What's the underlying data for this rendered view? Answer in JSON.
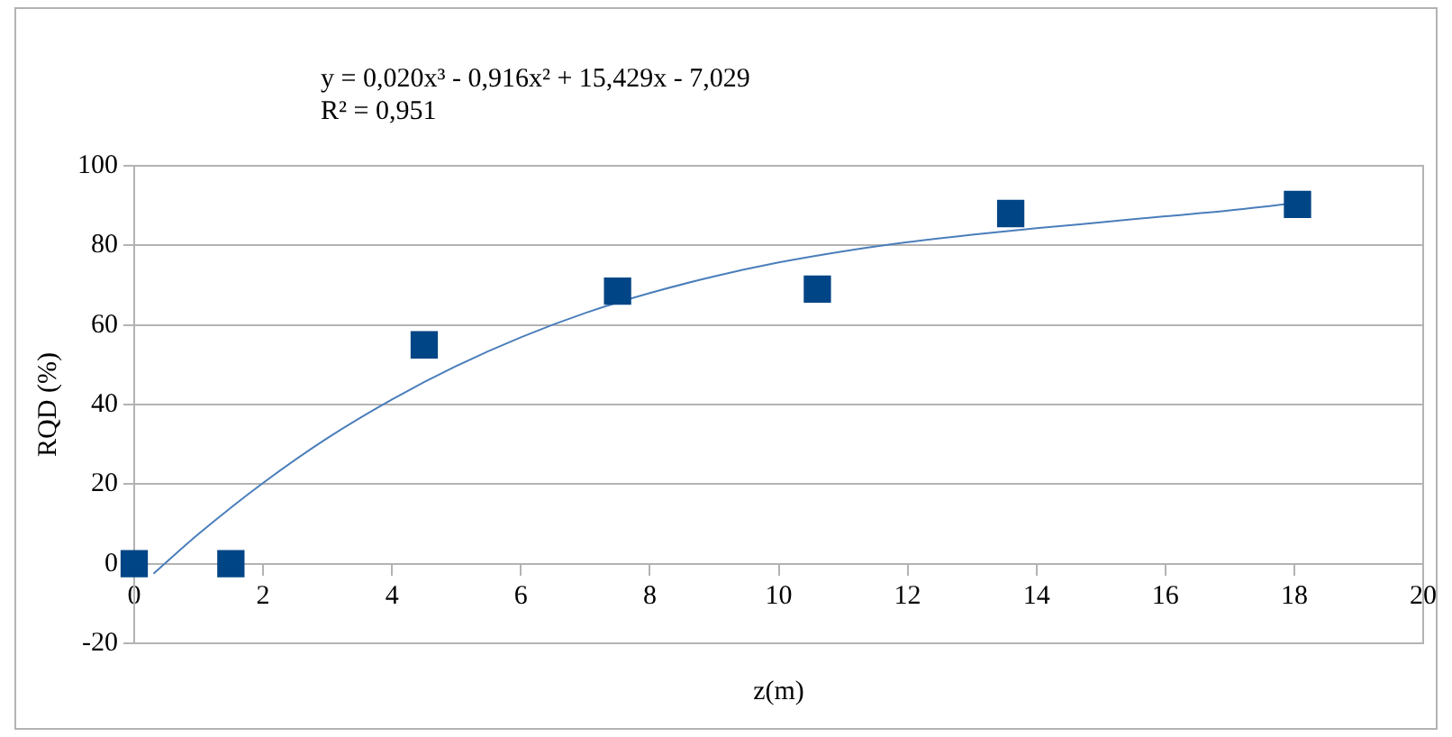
{
  "chart_data": {
    "type": "scatter",
    "xlabel": "z(m)",
    "ylabel": "RQD (%)",
    "annotations": [
      "y = 0,020x³ - 0,916x² + 15,429x - 7,029",
      "R² = 0,951"
    ],
    "xlim": [
      0,
      20
    ],
    "xticks": [
      0,
      2,
      4,
      6,
      8,
      10,
      12,
      14,
      16,
      18,
      20
    ],
    "ylim": [
      -20,
      100
    ],
    "yticks": [
      -20,
      0,
      20,
      40,
      60,
      80,
      100
    ],
    "grid": "y",
    "legend": false,
    "marker": "square",
    "series": [
      {
        "color": "#004586",
        "x": [
          0,
          1.5,
          4.5,
          7.5,
          10.6,
          13.6,
          18.05
        ],
        "values": [
          0,
          0,
          55,
          68.5,
          69,
          88,
          90.3
        ]
      },
      {
        "type": "line",
        "marker": "none",
        "color": "#4a7ebb",
        "x": [
          0.3,
          1,
          2,
          3,
          4,
          5,
          6,
          7,
          8,
          9,
          10,
          11,
          12,
          13,
          14,
          15,
          16,
          17,
          18.05
        ],
        "values": [
          -2.5,
          7.5,
          20.3,
          31.6,
          41.3,
          49.7,
          56.9,
          63,
          68,
          72.2,
          75.7,
          78.5,
          80.8,
          82.7,
          84.3,
          85.8,
          87.3,
          88.8,
          90.7
        ]
      }
    ]
  }
}
